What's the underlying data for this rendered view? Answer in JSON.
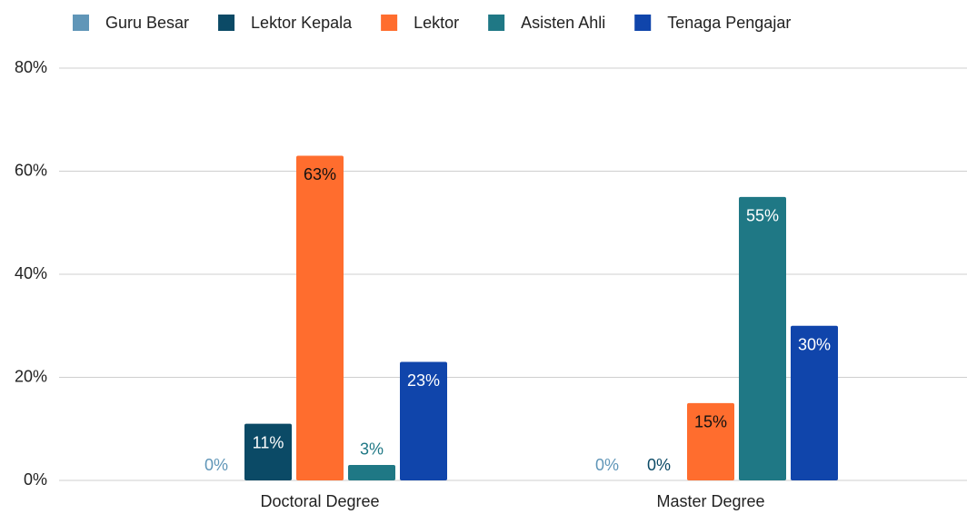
{
  "chart_data": {
    "type": "bar",
    "categories": [
      "Doctoral Degree",
      "Master Degree"
    ],
    "series": [
      {
        "name": "Guru Besar",
        "color": "#6096b8",
        "values": [
          0,
          0
        ],
        "value_labels": [
          "0%",
          "0%"
        ]
      },
      {
        "name": "Lektor Kepala",
        "color": "#0b4a66",
        "values": [
          11,
          0
        ],
        "value_labels": [
          "11%",
          "0%"
        ]
      },
      {
        "name": "Lektor",
        "color": "#ff6d2e",
        "values": [
          63,
          15
        ],
        "value_labels": [
          "63%",
          "15%"
        ]
      },
      {
        "name": "Asisten Ahli",
        "color": "#1f7885",
        "values": [
          3,
          55
        ],
        "value_labels": [
          "3%",
          "55%"
        ]
      },
      {
        "name": "Tenaga Pengajar",
        "color": "#1045ab",
        "values": [
          23,
          30
        ],
        "value_labels": [
          "23%",
          "30%"
        ]
      }
    ],
    "ylim": [
      0,
      80
    ],
    "yticks": [
      {
        "value": 0,
        "label": "0%"
      },
      {
        "value": 20,
        "label": "20%"
      },
      {
        "value": 40,
        "label": "40%"
      },
      {
        "value": 60,
        "label": "60%"
      },
      {
        "value": 80,
        "label": "80%"
      }
    ],
    "grid": true,
    "legend": "top"
  }
}
